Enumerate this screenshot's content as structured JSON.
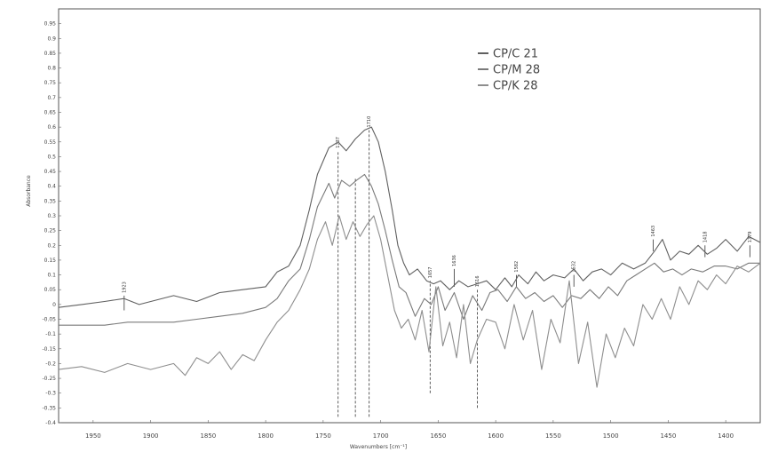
{
  "chart_data": {
    "type": "line",
    "title": "",
    "xlabel": "Wavenumbers [cm⁻¹]",
    "ylabel": "Absorbance",
    "xlim": [
      1980,
      1370
    ],
    "ylim": [
      -0.4,
      1.0
    ],
    "x_reversed": true,
    "grid": false,
    "legend_position": "top-center",
    "x_ticks": [
      1950,
      1900,
      1850,
      1800,
      1750,
      1700,
      1650,
      1600,
      1550,
      1500,
      1450,
      1400
    ],
    "y_ticks": [
      0.95,
      0.9,
      0.85,
      0.8,
      0.75,
      0.7,
      0.65,
      0.6,
      0.55,
      0.5,
      0.45,
      0.4,
      0.35,
      0.3,
      0.25,
      0.2,
      0.15,
      0.1,
      0.05,
      0,
      -0.05,
      -0.1,
      -0.15,
      -0.2,
      -0.25,
      -0.3,
      -0.35,
      -0.4
    ],
    "series": [
      {
        "name": "CP/C 21",
        "color": "#606060",
        "x": [
          1980,
          1960,
          1940,
          1923,
          1910,
          1880,
          1860,
          1840,
          1820,
          1800,
          1790,
          1780,
          1770,
          1762,
          1755,
          1745,
          1737,
          1730,
          1722,
          1714,
          1708,
          1702,
          1696,
          1690,
          1685,
          1680,
          1675,
          1668,
          1660,
          1654,
          1648,
          1640,
          1632,
          1624,
          1616,
          1608,
          1600,
          1592,
          1586,
          1580,
          1572,
          1565,
          1558,
          1550,
          1540,
          1532,
          1524,
          1516,
          1508,
          1500,
          1490,
          1480,
          1470,
          1462,
          1455,
          1448,
          1440,
          1432,
          1424,
          1416,
          1408,
          1400,
          1390,
          1380,
          1370
        ],
        "y": [
          -0.01,
          0.0,
          0.01,
          0.02,
          0.0,
          0.03,
          0.01,
          0.04,
          0.05,
          0.06,
          0.11,
          0.13,
          0.2,
          0.32,
          0.44,
          0.53,
          0.55,
          0.52,
          0.56,
          0.59,
          0.6,
          0.55,
          0.45,
          0.32,
          0.2,
          0.14,
          0.1,
          0.12,
          0.08,
          0.07,
          0.08,
          0.05,
          0.08,
          0.06,
          0.07,
          0.08,
          0.05,
          0.09,
          0.06,
          0.1,
          0.07,
          0.11,
          0.08,
          0.1,
          0.09,
          0.12,
          0.08,
          0.11,
          0.12,
          0.1,
          0.14,
          0.12,
          0.14,
          0.18,
          0.22,
          0.15,
          0.18,
          0.17,
          0.2,
          0.17,
          0.19,
          0.22,
          0.18,
          0.23,
          0.21
        ]
      },
      {
        "name": "CP/M 28",
        "color": "#7a7a7a",
        "x": [
          1980,
          1960,
          1940,
          1920,
          1900,
          1880,
          1860,
          1840,
          1820,
          1800,
          1790,
          1780,
          1770,
          1762,
          1755,
          1745,
          1740,
          1734,
          1727,
          1721,
          1714,
          1708,
          1702,
          1696,
          1690,
          1684,
          1678,
          1670,
          1662,
          1656,
          1650,
          1644,
          1636,
          1628,
          1620,
          1612,
          1605,
          1598,
          1590,
          1582,
          1574,
          1566,
          1558,
          1550,
          1542,
          1534,
          1526,
          1518,
          1510,
          1502,
          1494,
          1486,
          1478,
          1470,
          1462,
          1454,
          1446,
          1438,
          1430,
          1420,
          1410,
          1400,
          1390,
          1380,
          1370
        ],
        "y": [
          -0.07,
          -0.07,
          -0.07,
          -0.06,
          -0.06,
          -0.06,
          -0.05,
          -0.04,
          -0.03,
          -0.01,
          0.02,
          0.08,
          0.12,
          0.22,
          0.33,
          0.41,
          0.36,
          0.42,
          0.4,
          0.42,
          0.44,
          0.4,
          0.34,
          0.25,
          0.15,
          0.06,
          0.04,
          -0.04,
          0.02,
          0.0,
          0.06,
          -0.02,
          0.04,
          -0.05,
          0.03,
          -0.02,
          0.04,
          0.05,
          0.01,
          0.06,
          0.02,
          0.04,
          0.01,
          0.03,
          -0.01,
          0.03,
          0.02,
          0.05,
          0.02,
          0.06,
          0.03,
          0.08,
          0.1,
          0.12,
          0.14,
          0.11,
          0.12,
          0.1,
          0.12,
          0.11,
          0.13,
          0.13,
          0.12,
          0.14,
          0.14
        ]
      },
      {
        "name": "CP/K 28",
        "color": "#8e8e8e",
        "x": [
          1980,
          1960,
          1940,
          1920,
          1900,
          1880,
          1870,
          1860,
          1850,
          1840,
          1830,
          1820,
          1810,
          1800,
          1790,
          1780,
          1770,
          1762,
          1755,
          1748,
          1742,
          1736,
          1730,
          1724,
          1718,
          1712,
          1706,
          1700,
          1694,
          1688,
          1682,
          1676,
          1670,
          1664,
          1658,
          1652,
          1646,
          1640,
          1634,
          1628,
          1622,
          1616,
          1608,
          1600,
          1592,
          1584,
          1576,
          1568,
          1560,
          1552,
          1544,
          1536,
          1528,
          1520,
          1512,
          1504,
          1496,
          1488,
          1480,
          1472,
          1464,
          1456,
          1448,
          1440,
          1432,
          1424,
          1416,
          1408,
          1400,
          1390,
          1380,
          1370
        ],
        "y": [
          -0.22,
          -0.21,
          -0.23,
          -0.2,
          -0.22,
          -0.2,
          -0.24,
          -0.18,
          -0.2,
          -0.16,
          -0.22,
          -0.17,
          -0.19,
          -0.12,
          -0.06,
          -0.02,
          0.05,
          0.12,
          0.22,
          0.28,
          0.2,
          0.3,
          0.22,
          0.28,
          0.23,
          0.27,
          0.3,
          0.22,
          0.1,
          -0.02,
          -0.08,
          -0.05,
          -0.12,
          -0.02,
          -0.16,
          0.06,
          -0.14,
          -0.06,
          -0.18,
          0.0,
          -0.2,
          -0.12,
          -0.05,
          -0.06,
          -0.15,
          0.0,
          -0.12,
          -0.02,
          -0.22,
          -0.05,
          -0.13,
          0.08,
          -0.2,
          -0.06,
          -0.28,
          -0.1,
          -0.18,
          -0.08,
          -0.14,
          0.0,
          -0.05,
          0.02,
          -0.05,
          0.06,
          0.0,
          0.08,
          0.05,
          0.1,
          0.07,
          0.13,
          0.11,
          0.14
        ]
      }
    ],
    "annotations": [
      {
        "x": 1923,
        "label": "1923",
        "from": -0.02,
        "to": 0.03,
        "dashed": false
      },
      {
        "x": 1737,
        "label": "1737",
        "from": -0.38,
        "to": 0.52,
        "dashed": true
      },
      {
        "x": 1722,
        "label": "",
        "from": -0.38,
        "to": 0.43,
        "dashed": true
      },
      {
        "x": 1710,
        "label": "1710",
        "from": -0.38,
        "to": 0.59,
        "dashed": true
      },
      {
        "x": 1657,
        "label": "1657",
        "from": -0.3,
        "to": 0.08,
        "dashed": true
      },
      {
        "x": 1636,
        "label": "1636",
        "from": 0.06,
        "to": 0.12,
        "dashed": false
      },
      {
        "x": 1616,
        "label": "1616",
        "from": -0.35,
        "to": 0.05,
        "dashed": true
      },
      {
        "x": 1582,
        "label": "1582",
        "from": 0.06,
        "to": 0.1,
        "dashed": false
      },
      {
        "x": 1532,
        "label": "1532",
        "from": 0.06,
        "to": 0.1,
        "dashed": false
      },
      {
        "x": 1463,
        "label": "1463",
        "from": 0.18,
        "to": 0.22,
        "dashed": false
      },
      {
        "x": 1418,
        "label": "1418",
        "from": 0.16,
        "to": 0.2,
        "dashed": false
      },
      {
        "x": 1379,
        "label": "1379",
        "from": 0.16,
        "to": 0.2,
        "dashed": false
      }
    ]
  }
}
